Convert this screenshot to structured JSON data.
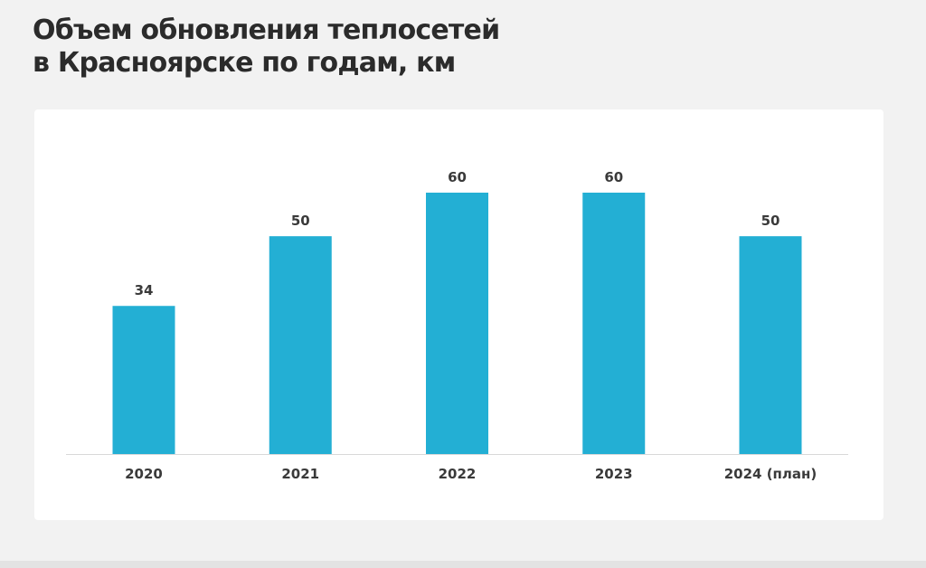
{
  "title": {
    "line1": "Объем обновления теплосетей",
    "line2": "в Красноярске по годам, км"
  },
  "colors": {
    "bar": "#23afd4",
    "label": "#3a3a3a",
    "axis": "#d9d9d9"
  },
  "chart_data": {
    "type": "bar",
    "title": "Объем обновления теплосетей в Красноярске по годам, км",
    "categories": [
      "2020",
      "2021",
      "2022",
      "2023",
      "2024 (план)"
    ],
    "values": [
      34,
      50,
      60,
      60,
      50
    ],
    "ylim": [
      0,
      60
    ],
    "grid": false,
    "legend": "none"
  }
}
